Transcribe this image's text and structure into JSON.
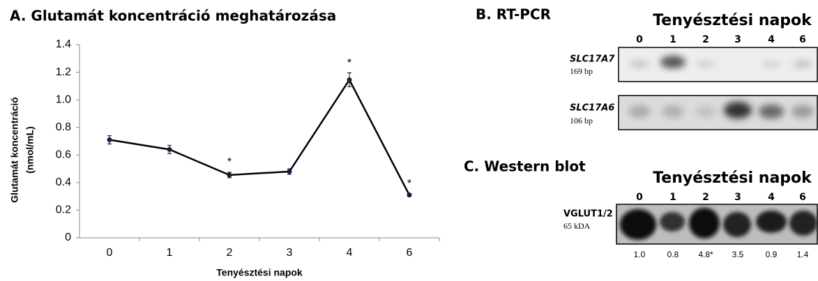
{
  "chart_data": {
    "type": "line",
    "title": "A. Glutamát koncentráció meghatározása",
    "y_label": [
      "Glutamát koncentráció",
      "(nmol/mL)"
    ],
    "x_label": "Tenyésztési napok",
    "categories": [
      "0",
      "1",
      "2",
      "3",
      "4",
      "6"
    ],
    "values": [
      0.71,
      0.64,
      0.455,
      0.48,
      1.145,
      0.31
    ],
    "errors": [
      0.03,
      0.03,
      0.02,
      0.02,
      0.05,
      0.01
    ],
    "color": "#000000",
    "ylim": [
      0,
      1.4
    ],
    "yticks": [
      0,
      0.2,
      0.4,
      0.6,
      0.8,
      {
        "value": 1,
        "label": "1.0"
      },
      1.2,
      1.4
    ],
    "annotations": [
      {
        "x": "2",
        "text": "*"
      },
      {
        "x": "4",
        "text": "*"
      },
      {
        "x": "6",
        "text": "*"
      }
    ]
  },
  "rt_pcr": {
    "title": "B. RT-PCR",
    "header": "Tenyésztési napok",
    "lanes": [
      "0",
      "1",
      "2",
      "3",
      "4",
      "6"
    ],
    "genes": [
      {
        "name": "SLC17A7",
        "size": "169 bp"
      },
      {
        "name": "SLC17A6",
        "size": "106 bp"
      }
    ]
  },
  "western_blot": {
    "title": "C. Western blot",
    "header": "Tenyésztési napok",
    "lanes": [
      "0",
      "1",
      "2",
      "3",
      "4",
      "6"
    ],
    "protein": "VGLUT1/2",
    "size": "65 kDA",
    "quantification": [
      "1.0",
      "0.8",
      "4.8*",
      "3.5",
      "0.9",
      "1.4"
    ]
  }
}
